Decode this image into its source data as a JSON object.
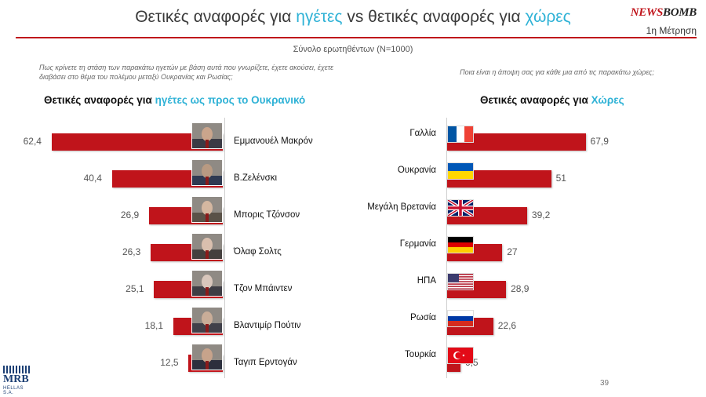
{
  "title": {
    "part1": "Θετικές αναφορές για ",
    "hl1": "ηγέτες",
    "part2": " vs θετικές αναφορές για ",
    "hl2": "χώρες"
  },
  "brand": {
    "a": "NEWS",
    "b": "BOMB"
  },
  "wave": "1η Μέτρηση",
  "sample": "Σύνολο ερωτηθέντων (N=1000)",
  "questions": {
    "left": "Πως κρίνετε τη στάση των παρακάτω ηγετών με βάση αυτά που γνωρίζετε, έχετε ακούσει, έχετε διαβάσει στο θέμα του πολέμου μεταξύ Ουκρανίας και Ρωσίας;",
    "right": "Ποια είναι η άποψη σας για κάθε μια από τις παρακάτω χώρες;"
  },
  "headings": {
    "left": {
      "text": "Θετικές αναφορές για ",
      "hl": "ηγέτες ως προς το Ουκρανικό"
    },
    "right": {
      "text": "Θετικές αναφορές για ",
      "hl": "Χώρες"
    }
  },
  "chart_data": [
    {
      "type": "bar",
      "orientation": "horizontal",
      "title": "Θετικές αναφορές για ηγέτες ως προς το Ουκρανικό",
      "categories": [
        "Εμμανουέλ Μακρόν",
        "Β.Ζελένσκι",
        "Μπορις Τζόνσον",
        "Όλαφ Σολτς",
        "Τζον Μπάιντεν",
        "Βλαντιμίρ Πούτιν",
        "Ταγιπ Ερντογάν"
      ],
      "values": [
        62.4,
        40.4,
        26.9,
        26.3,
        25.1,
        18.1,
        12.5
      ],
      "labels": [
        "62,4",
        "40,4",
        "26,9",
        "26,3",
        "25,1",
        "18,1",
        "12,5"
      ],
      "direction": "right-to-left",
      "color": "#c0141b"
    },
    {
      "type": "bar",
      "orientation": "horizontal",
      "title": "Θετικές αναφορές για Χώρες",
      "categories": [
        "Γαλλία",
        "Ουκρανία",
        "Μεγάλη Βρετανία",
        "Γερμανία",
        "ΗΠΑ",
        "Ρωσία",
        "Τουρκία"
      ],
      "values": [
        67.9,
        51,
        39.2,
        27,
        28.9,
        22.6,
        6.5
      ],
      "labels": [
        "67,9",
        "51",
        "39,2",
        "27",
        "28,9",
        "22,6",
        "6,5"
      ],
      "flags": [
        "france-flag-icon",
        "ukraine-flag-icon",
        "uk-flag-icon",
        "germany-flag-icon",
        "usa-flag-icon",
        "russia-flag-icon",
        "turkey-flag-icon"
      ],
      "direction": "left-to-right",
      "color": "#c0141b"
    }
  ],
  "page_number": "39",
  "logo": {
    "main": "MRB",
    "sub": "HELLAS S.A."
  }
}
